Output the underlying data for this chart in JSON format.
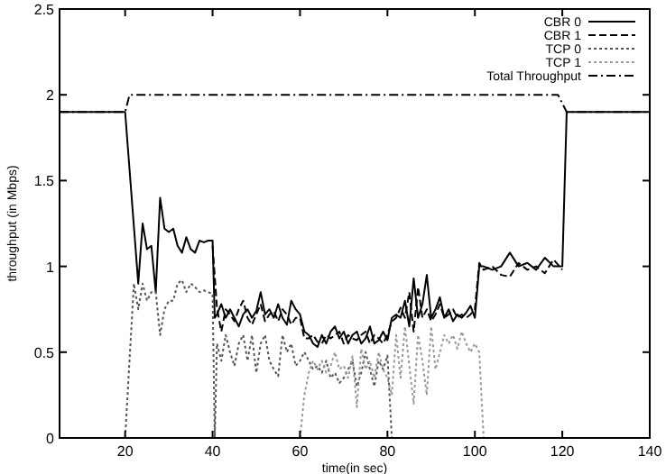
{
  "chart_data": {
    "type": "line",
    "xlabel": "time(in sec)",
    "ylabel": "throughput (in Mbps)",
    "xlim": [
      5,
      140
    ],
    "xticks": [
      20,
      40,
      60,
      80,
      100,
      120,
      140
    ],
    "ylim": [
      0,
      2.5
    ],
    "yticks": [
      0,
      0.5,
      1,
      1.5,
      2,
      2.5
    ],
    "grid": false,
    "legend": "top right",
    "series": [
      {
        "name": "CBR 0",
        "color": "#000000",
        "line_style": "solid",
        "x": [
          5,
          20,
          23,
          24,
          25,
          26,
          27,
          28,
          29,
          30,
          31,
          32,
          33,
          34,
          35,
          36,
          37,
          38,
          39,
          40,
          40.5,
          41,
          42,
          43,
          44,
          45,
          46,
          47,
          48,
          49,
          50,
          51,
          52,
          53,
          54,
          55,
          56,
          57,
          58,
          59,
          60,
          61,
          62,
          63,
          64,
          65,
          66,
          67,
          68,
          69,
          70,
          71,
          72,
          73,
          74,
          75,
          76,
          77,
          78,
          79,
          80,
          81,
          82,
          83,
          84,
          85,
          86,
          87,
          88,
          89,
          90,
          91,
          92,
          93,
          94,
          95,
          96,
          97,
          98,
          99,
          100,
          101,
          102,
          104,
          106,
          108,
          110,
          112,
          114,
          116,
          118,
          120,
          121,
          140
        ],
        "values": [
          1.9,
          1.9,
          0.9,
          1.25,
          1.1,
          1.12,
          0.85,
          1.4,
          1.22,
          1.2,
          1.22,
          1.12,
          1.08,
          1.17,
          1.1,
          1.08,
          1.15,
          1.14,
          1.15,
          1.15,
          0.7,
          0.72,
          0.78,
          0.7,
          0.75,
          0.7,
          0.65,
          0.72,
          0.75,
          0.7,
          0.74,
          0.85,
          0.72,
          0.75,
          0.7,
          0.78,
          0.7,
          0.66,
          0.8,
          0.75,
          0.72,
          0.62,
          0.6,
          0.55,
          0.53,
          0.6,
          0.55,
          0.62,
          0.65,
          0.58,
          0.62,
          0.55,
          0.6,
          0.62,
          0.55,
          0.58,
          0.65,
          0.55,
          0.57,
          0.62,
          0.57,
          0.7,
          0.72,
          0.7,
          0.8,
          0.65,
          0.93,
          0.7,
          0.78,
          0.95,
          0.7,
          0.75,
          0.82,
          0.7,
          0.75,
          0.68,
          0.72,
          0.7,
          0.73,
          0.77,
          0.7,
          1.0,
          1.0,
          0.98,
          1.0,
          1.08,
          1.0,
          1.02,
          0.98,
          1.05,
          1.0,
          1.0,
          1.9,
          1.9
        ]
      },
      {
        "name": "CBR 1",
        "color": "#000000",
        "line_style": "dashed",
        "x": [
          40,
          41,
          42,
          43,
          44,
          45,
          46,
          47,
          48,
          49,
          50,
          51,
          52,
          53,
          54,
          55,
          56,
          57,
          58,
          59,
          60,
          61,
          62,
          63,
          64,
          65,
          66,
          67,
          68,
          69,
          70,
          71,
          72,
          73,
          74,
          75,
          76,
          77,
          78,
          79,
          80,
          81,
          82,
          83,
          84,
          85,
          86,
          87,
          88,
          89,
          90,
          91,
          92,
          93,
          94,
          95,
          96,
          97,
          98,
          99,
          100,
          101,
          102,
          104,
          106,
          108,
          110,
          112,
          114,
          116,
          118,
          120
        ],
        "values": [
          1.12,
          0.76,
          0.62,
          0.75,
          0.72,
          0.68,
          0.75,
          0.8,
          0.7,
          0.66,
          0.72,
          0.78,
          0.68,
          0.72,
          0.74,
          0.68,
          0.75,
          0.72,
          0.66,
          0.7,
          0.7,
          0.58,
          0.58,
          0.6,
          0.56,
          0.55,
          0.6,
          0.58,
          0.6,
          0.62,
          0.55,
          0.6,
          0.58,
          0.57,
          0.6,
          0.62,
          0.55,
          0.6,
          0.58,
          0.55,
          0.6,
          0.68,
          0.7,
          0.76,
          0.7,
          0.85,
          0.62,
          0.88,
          0.7,
          0.75,
          0.68,
          0.72,
          0.78,
          0.7,
          0.72,
          0.75,
          0.7,
          0.72,
          0.7,
          0.72,
          0.75,
          1.02,
          0.98,
          1.0,
          0.95,
          0.94,
          1.02,
          0.98,
          1.0,
          0.96,
          1.04,
          0.98
        ]
      },
      {
        "name": "TCP 0",
        "color": "#555555",
        "line_style": "dotted",
        "x": [
          20,
          22,
          23,
          24,
          25,
          26,
          27,
          28,
          29,
          30,
          31,
          32,
          33,
          34,
          35,
          36,
          37,
          38,
          39,
          40,
          40.5,
          41,
          42,
          43,
          44,
          45,
          46,
          47,
          48,
          49,
          50,
          51,
          52,
          53,
          54,
          55,
          56,
          57,
          58,
          59,
          60,
          61,
          62,
          63,
          64,
          65,
          66,
          67,
          68,
          69,
          70,
          71,
          72,
          73,
          74,
          75,
          76,
          77,
          78,
          79,
          80,
          81
        ],
        "values": [
          0,
          0.9,
          0.75,
          0.9,
          0.8,
          0.85,
          0.85,
          0.6,
          0.75,
          0.8,
          0.8,
          0.9,
          0.92,
          0.85,
          0.9,
          0.88,
          0.85,
          0.86,
          0.85,
          0.84,
          0,
          0.55,
          0.45,
          0.6,
          0.5,
          0.42,
          0.55,
          0.6,
          0.45,
          0.6,
          0.38,
          0.55,
          0.6,
          0.45,
          0.4,
          0.36,
          0.6,
          0.5,
          0.55,
          0.42,
          0.45,
          0.5,
          0.45,
          0.4,
          0.42,
          0.38,
          0.45,
          0.35,
          0.38,
          0.32,
          0.35,
          0.4,
          0.45,
          0.3,
          0.38,
          0.5,
          0.4,
          0.3,
          0.45,
          0.4,
          0.48,
          0
        ]
      },
      {
        "name": "TCP 1",
        "color": "#999999",
        "line_style": "dotted",
        "x": [
          60,
          61,
          62,
          63,
          64,
          65,
          66,
          67,
          68,
          69,
          70,
          71,
          72,
          73,
          74,
          75,
          76,
          77,
          78,
          79,
          80,
          81,
          82,
          83,
          84,
          85,
          86,
          87,
          88,
          89,
          90,
          91,
          92,
          93,
          94,
          95,
          96,
          97,
          98,
          99,
          100,
          101,
          102
        ],
        "values": [
          0,
          0.25,
          0.38,
          0.45,
          0.4,
          0.45,
          0.38,
          0.42,
          0.5,
          0.4,
          0.42,
          0.35,
          0.48,
          0.18,
          0.52,
          0.4,
          0.45,
          0.35,
          0.5,
          0.4,
          0.35,
          0.25,
          0.6,
          0.35,
          0.65,
          0.42,
          0.2,
          0.6,
          0.45,
          0.25,
          0.65,
          0.4,
          0.5,
          0.6,
          0.55,
          0.6,
          0.52,
          0.62,
          0.55,
          0.5,
          0.55,
          0.5,
          0
        ]
      },
      {
        "name": "Total Throughput",
        "color": "#000000",
        "line_style": "dashdot",
        "x": [
          5,
          20,
          21,
          119,
          121,
          140
        ],
        "values": [
          1.9,
          1.9,
          2,
          2,
          1.9,
          1.9
        ]
      }
    ]
  }
}
